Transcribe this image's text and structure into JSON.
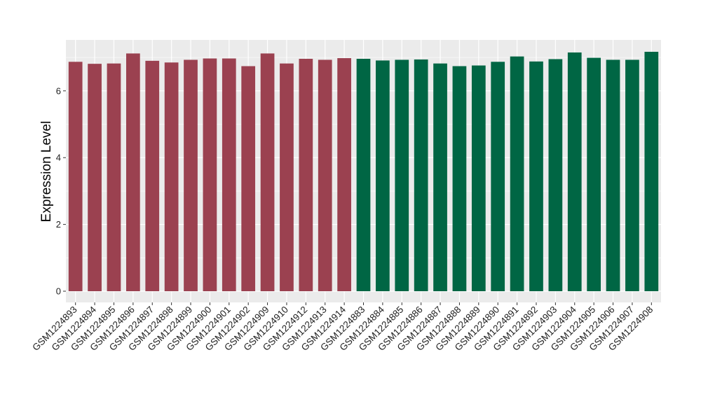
{
  "chart_data": {
    "type": "bar",
    "title": "",
    "xlabel": "",
    "ylabel": "Expression Level",
    "ylim": [
      0,
      7.6
    ],
    "yticks": [
      0,
      2,
      4,
      6
    ],
    "grid": true,
    "categories": [
      "GSM1224893",
      "GSM1224894",
      "GSM1224895",
      "GSM1224896",
      "GSM1224897",
      "GSM1224898",
      "GSM1224899",
      "GSM1224900",
      "GSM1224901",
      "GSM1224902",
      "GSM1224909",
      "GSM1224910",
      "GSM1224912",
      "GSM1224913",
      "GSM1224914",
      "GSM1224883",
      "GSM1224884",
      "GSM1224885",
      "GSM1224886",
      "GSM1224887",
      "GSM1224888",
      "GSM1224889",
      "GSM1224890",
      "GSM1224891",
      "GSM1224892",
      "GSM1224903",
      "GSM1224904",
      "GSM1224905",
      "GSM1224906",
      "GSM1224907",
      "GSM1224908"
    ],
    "values": [
      6.87,
      6.81,
      6.82,
      7.12,
      6.9,
      6.85,
      6.93,
      6.97,
      6.97,
      6.74,
      7.12,
      6.82,
      6.96,
      6.93,
      6.98,
      6.96,
      6.91,
      6.93,
      6.94,
      6.82,
      6.74,
      6.76,
      6.87,
      7.03,
      6.88,
      6.95,
      7.15,
      6.99,
      6.93,
      6.93,
      7.17
    ],
    "group_sizes": [
      15,
      16
    ],
    "colors": [
      "#9b4150",
      "#006644"
    ],
    "background": "#ebebeb",
    "gridline_color": "#ffffff"
  }
}
